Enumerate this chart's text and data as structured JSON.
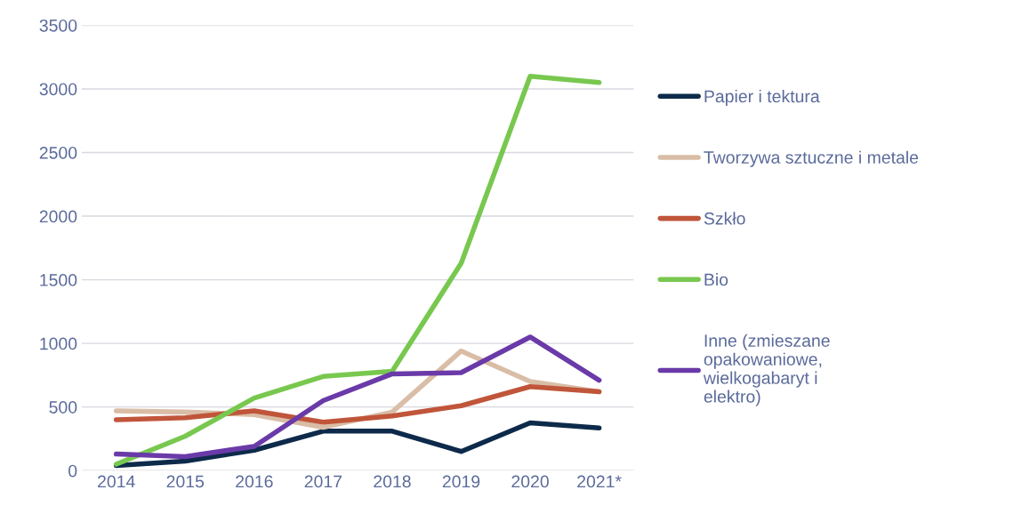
{
  "chart_data": {
    "type": "line",
    "categories": [
      "2014",
      "2015",
      "2016",
      "2017",
      "2018",
      "2019",
      "2020",
      "2021*"
    ],
    "series": [
      {
        "name": "Papier i tektura",
        "color": "#0d2a4a",
        "values": [
          40,
          75,
          160,
          310,
          310,
          150,
          375,
          335
        ]
      },
      {
        "name": "Tworzywa sztuczne i metale",
        "color": "#d9bda6",
        "values": [
          470,
          460,
          440,
          340,
          460,
          940,
          700,
          620
        ]
      },
      {
        "name": "Szkło",
        "color": "#c0553a",
        "values": [
          400,
          415,
          470,
          380,
          430,
          510,
          660,
          620
        ]
      },
      {
        "name": "Bio",
        "color": "#78c850",
        "values": [
          50,
          270,
          570,
          740,
          780,
          1630,
          3100,
          3050
        ]
      },
      {
        "name": "Inne (zmieszane opakowaniowe, wielkogabaryt i elektro)",
        "color": "#6a3aa8",
        "values": [
          130,
          110,
          190,
          550,
          760,
          770,
          1050,
          710
        ]
      }
    ],
    "ylim": [
      0,
      3500
    ],
    "yticks": [
      0,
      500,
      1000,
      1500,
      2000,
      2500,
      3000,
      3500
    ],
    "grid": "y",
    "legend": "right",
    "marker": "none",
    "line_style": "solid"
  }
}
